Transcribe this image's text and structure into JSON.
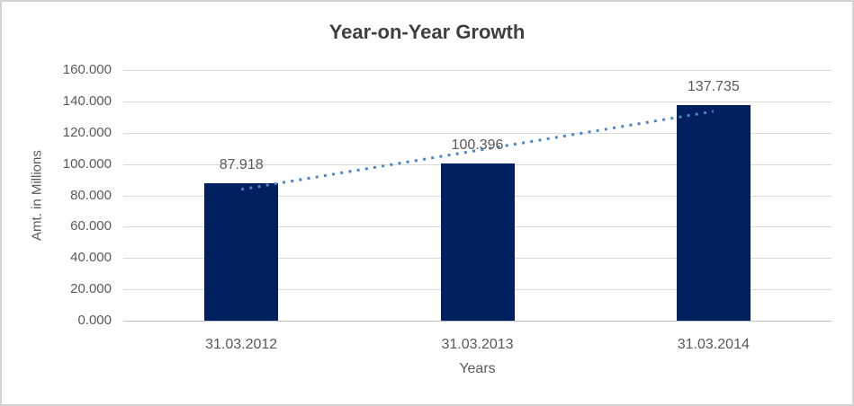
{
  "chart_data": {
    "type": "bar",
    "title": "Year-on-Year Growth",
    "categories": [
      "31.03.2012",
      "31.03.2013",
      "31.03.2014"
    ],
    "values": [
      87.918,
      100.396,
      137.735
    ],
    "data_labels": [
      "87.918",
      "100.396",
      "137.735"
    ],
    "xlabel": "Years",
    "ylabel": "Amt. in Millions",
    "ylim": [
      0,
      160
    ],
    "ytick_step": 20,
    "ytick_labels": [
      "160.000",
      "140.000",
      "120.000",
      "100.000",
      "80.000",
      "60.000",
      "40.000",
      "20.000",
      "0.000"
    ],
    "grid": true,
    "legend": "none",
    "bar_color": "#002060",
    "trendline": {
      "type": "linear",
      "style": "dotted",
      "color": "#4a86c8",
      "start_value": 83.8,
      "end_value": 133.6
    }
  },
  "colors": {
    "background": "#ffffff",
    "frame_border": "#d3d3d3",
    "gridline": "#d9d9d9",
    "axis_line": "#bfbfbf",
    "title_text": "#3f3f3f",
    "label_text": "#595959"
  }
}
